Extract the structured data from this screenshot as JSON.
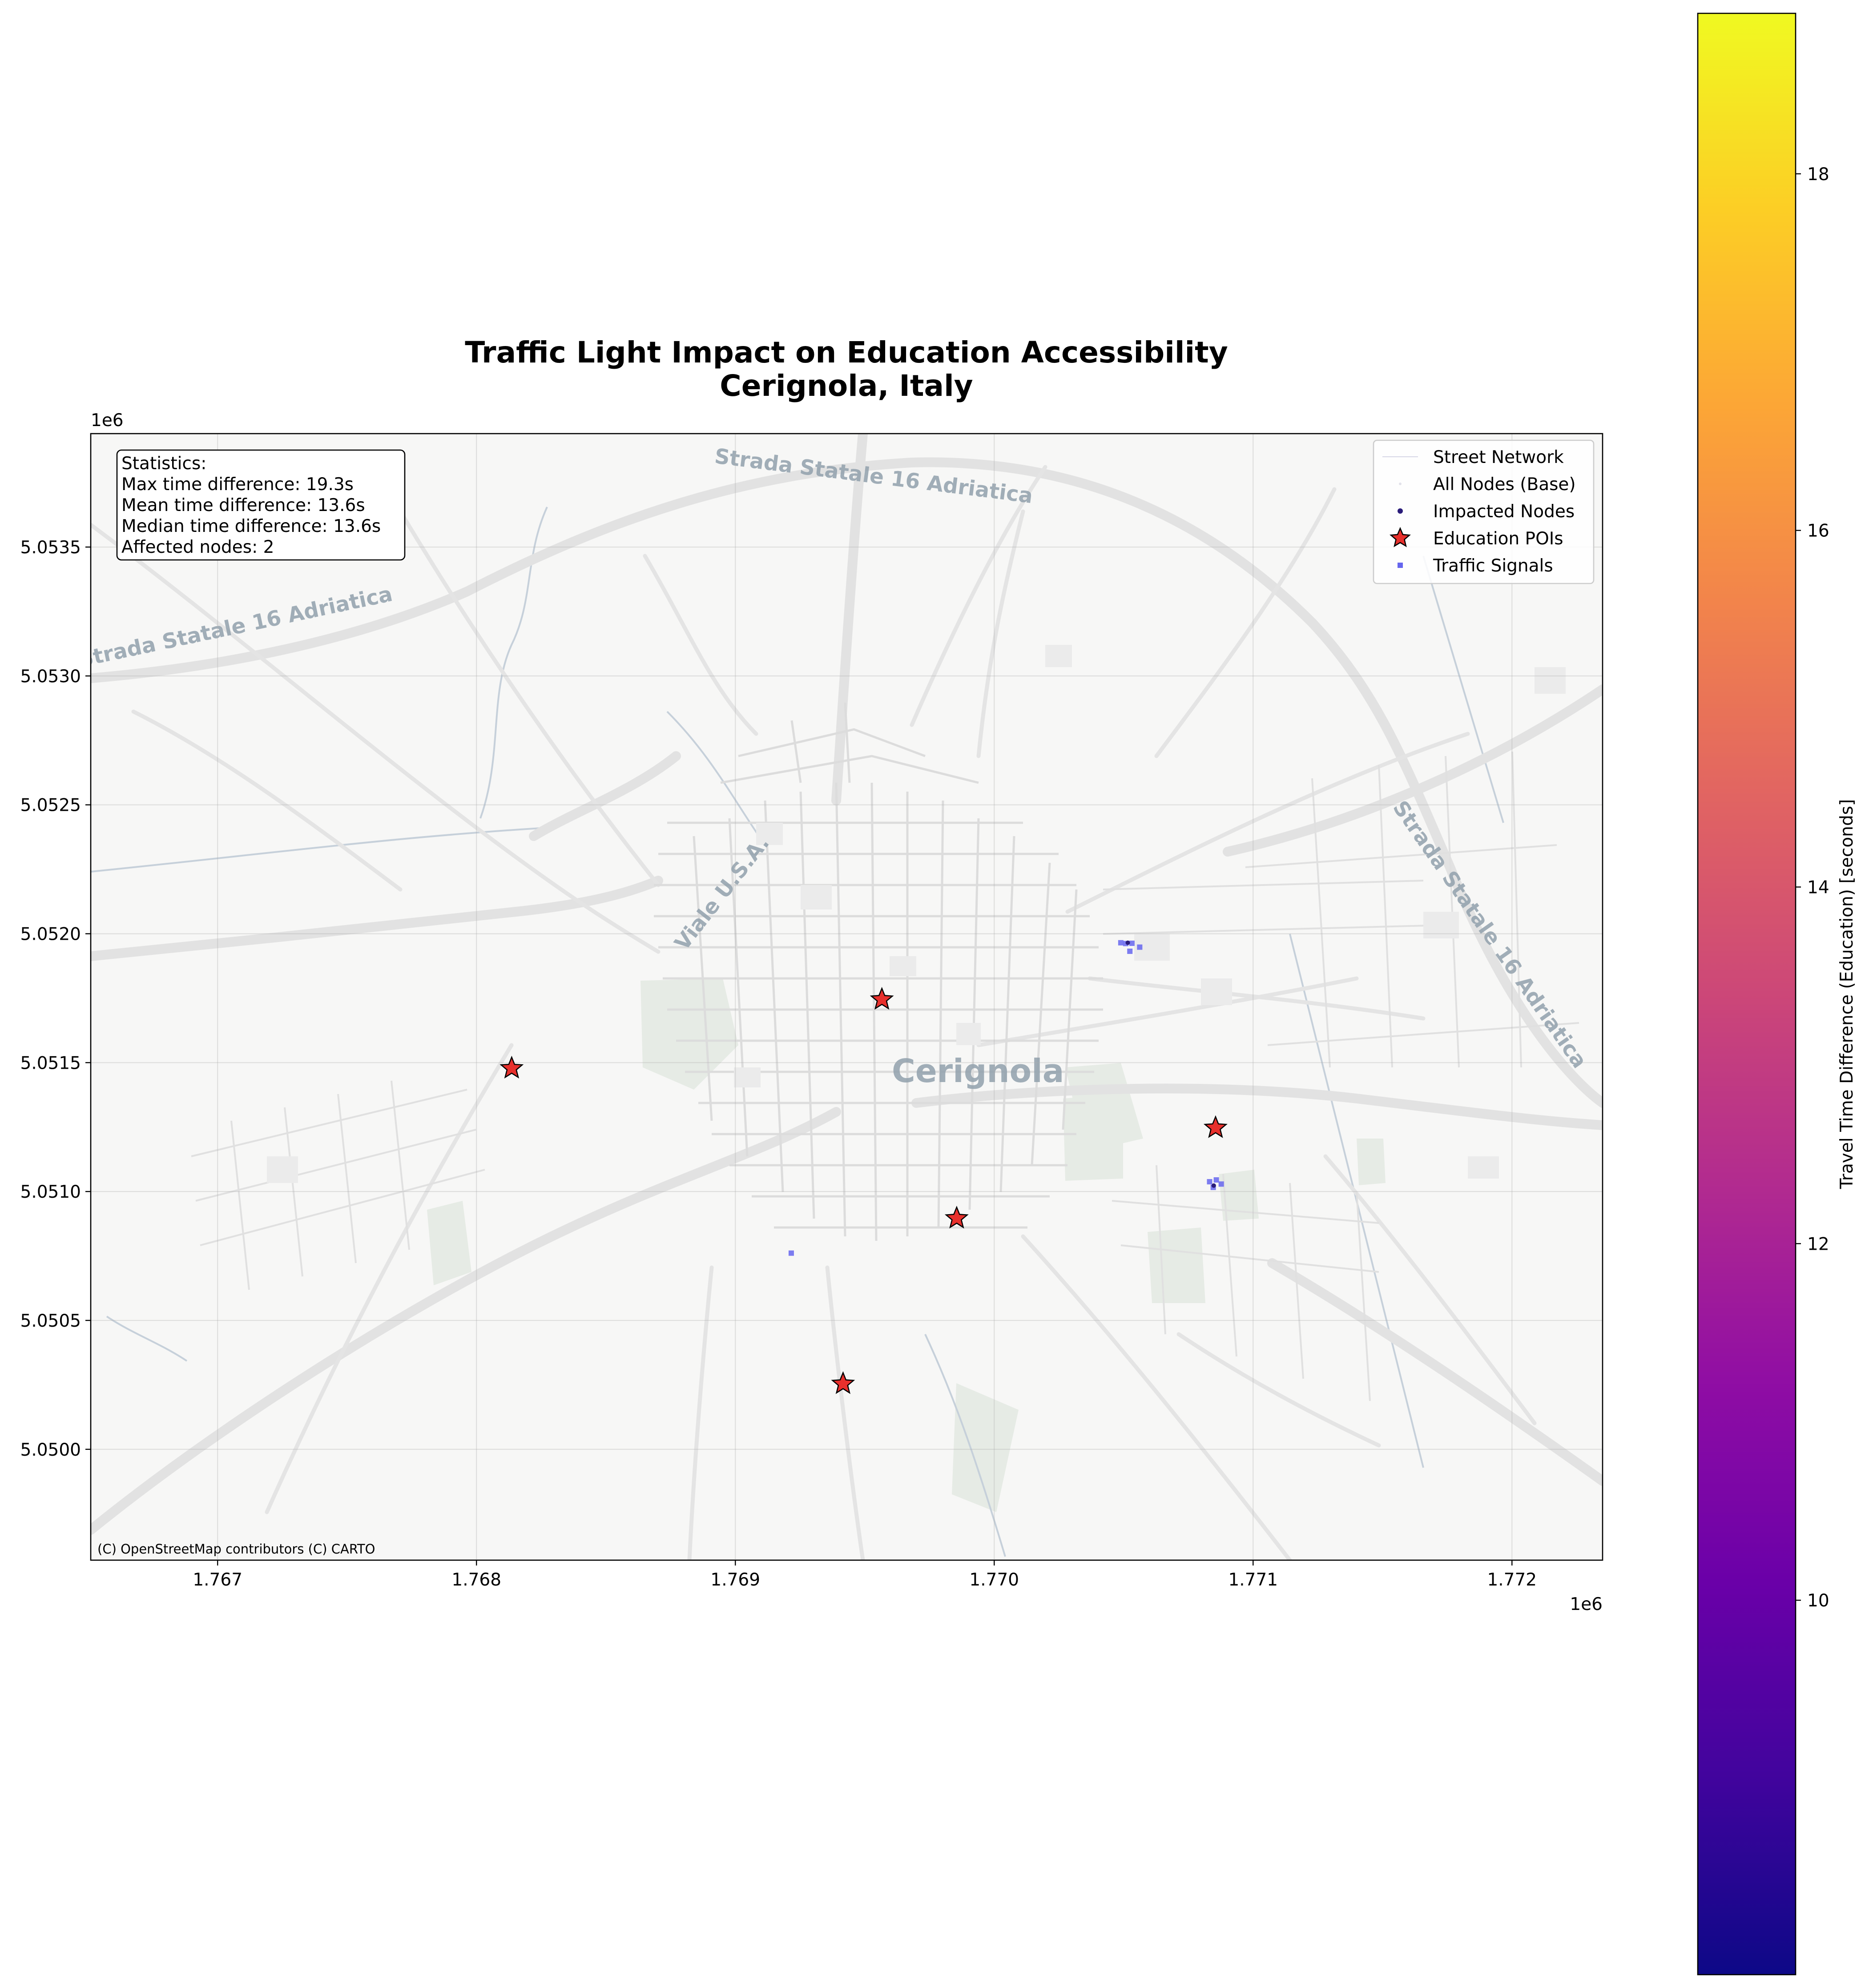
{
  "title": {
    "line1": "Traffic Light Impact on Education Accessibility",
    "line2": "Cerignola, Italy"
  },
  "axes": {
    "x": {
      "range": [
        1.76651,
        1.77235
      ],
      "ticks": [
        1.767,
        1.768,
        1.769,
        1.77,
        1.771,
        1.772
      ],
      "tick_labels": [
        "1.767",
        "1.768",
        "1.769",
        "1.770",
        "1.771",
        "1.772"
      ],
      "offset_label": "1e6"
    },
    "y": {
      "range": [
        5.04957,
        5.05394
      ],
      "ticks": [
        5.05,
        5.0505,
        5.051,
        5.0515,
        5.052,
        5.0525,
        5.053,
        5.0535
      ],
      "tick_labels": [
        "5.0500",
        "5.0505",
        "5.0510",
        "5.0515",
        "5.0520",
        "5.0525",
        "5.0530",
        "5.0535"
      ],
      "offset_label": "1e6"
    },
    "grid": true
  },
  "stats": {
    "header": "Statistics:",
    "lines": [
      "Max time difference: 19.3s",
      "Mean time difference: 13.6s",
      "Median time difference: 13.6s",
      "Affected nodes: 2"
    ]
  },
  "legend": {
    "placement": "upper-right",
    "items": [
      {
        "label": "Street Network",
        "marker": "line",
        "color": "#d6d6e6"
      },
      {
        "label": "All Nodes (Base)",
        "marker": "dot",
        "color": "#e2e2ea"
      },
      {
        "label": "Impacted Nodes",
        "marker": "dot",
        "color": "#2a1c7a"
      },
      {
        "label": "Education POIs",
        "marker": "star",
        "color": "#e8302c"
      },
      {
        "label": "Traffic Signals",
        "marker": "square",
        "color": "#6666ee"
      }
    ]
  },
  "map": {
    "place_labels": [
      {
        "text": "Cerignola",
        "kind": "city"
      },
      {
        "text": "Strada Statale 16 Adriatica",
        "kind": "road"
      },
      {
        "text": "Strada Statale 16 Adriatica",
        "kind": "road"
      },
      {
        "text": "Strada Statale 16 Adriatica",
        "kind": "road"
      },
      {
        "text": "Viale U.S.A.",
        "kind": "road"
      }
    ],
    "attribution": "(C) OpenStreetMap contributors (C) CARTO"
  },
  "chart_data": {
    "type": "scatter",
    "title": "Traffic Light Impact on Education Accessibility\nCerignola, Italy",
    "xlabel": "",
    "ylabel": "",
    "units_multiplier": "1e6",
    "series": [
      {
        "name": "Education POIs",
        "marker": "star",
        "points": [
          [
            1.768136,
            5.051478
          ],
          [
            1.769566,
            5.051745
          ],
          [
            1.770855,
            5.051247
          ],
          [
            1.769855,
            5.050896
          ],
          [
            1.769416,
            5.050254
          ]
        ]
      },
      {
        "name": "Traffic Signals",
        "marker": "square",
        "points": [
          [
            1.770489,
            5.051965
          ],
          [
            1.770508,
            5.051962
          ],
          [
            1.770532,
            5.051963
          ],
          [
            1.770524,
            5.051932
          ],
          [
            1.770562,
            5.051948
          ],
          [
            1.770832,
            5.051038
          ],
          [
            1.770858,
            5.051045
          ],
          [
            1.770877,
            5.051029
          ],
          [
            1.770846,
            5.051016
          ],
          [
            1.769216,
            5.050761
          ]
        ]
      },
      {
        "name": "Impacted Nodes",
        "marker": "dot",
        "points": [
          [
            1.770516,
            5.051965
          ],
          [
            1.770848,
            5.051023
          ]
        ]
      }
    ],
    "colorbar": {
      "label": "Travel Time Difference (Education) [seconds]",
      "colormap": "plasma",
      "range": [
        7.9,
        18.9
      ],
      "ticks": [
        10,
        12,
        14,
        16,
        18
      ],
      "tick_labels": [
        "10",
        "12",
        "14",
        "16",
        "18"
      ]
    }
  }
}
